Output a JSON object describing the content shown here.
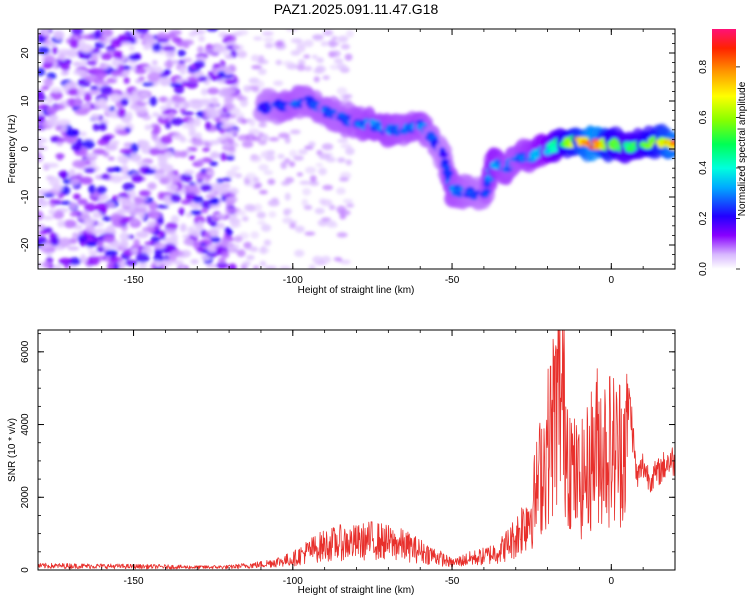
{
  "title": "PAZ1.2025.091.11.47.G18",
  "colors": {
    "snr_line": "#e8302c",
    "axis": "#000000"
  },
  "chart_data": [
    {
      "type": "heatmap",
      "xlabel": "Height of straight line (km)",
      "ylabel": "Frequency (Hz)",
      "xlim": [
        -180,
        20
      ],
      "ylim": [
        -25,
        25
      ],
      "x_ticks": [
        -150,
        -100,
        -50,
        0
      ],
      "y_ticks": [
        -20,
        -10,
        0,
        10,
        20
      ],
      "colorbar": {
        "label": "Normalized spectral amplitude",
        "range": [
          0,
          0.95
        ],
        "ticks": [
          "0.0",
          "0.2",
          "0.4",
          "0.6",
          "0.8"
        ],
        "colormap": "rainbow"
      },
      "ridge": [
        {
          "x": -110,
          "y": 8.5,
          "amp": 0.22
        },
        {
          "x": -105,
          "y": 9.0,
          "amp": 0.25
        },
        {
          "x": -100,
          "y": 9.0,
          "amp": 0.28
        },
        {
          "x": -95,
          "y": 10.0,
          "amp": 0.26
        },
        {
          "x": -90,
          "y": 8.0,
          "amp": 0.27
        },
        {
          "x": -85,
          "y": 6.5,
          "amp": 0.26
        },
        {
          "x": -80,
          "y": 5.5,
          "amp": 0.28
        },
        {
          "x": -75,
          "y": 5.0,
          "amp": 0.3
        },
        {
          "x": -70,
          "y": 4.0,
          "amp": 0.3
        },
        {
          "x": -65,
          "y": 4.0,
          "amp": 0.28
        },
        {
          "x": -60,
          "y": 5.0,
          "amp": 0.3
        },
        {
          "x": -57,
          "y": 3.0,
          "amp": 0.26
        },
        {
          "x": -53,
          "y": -1.0,
          "amp": 0.22
        },
        {
          "x": -50,
          "y": -8.5,
          "amp": 0.3
        },
        {
          "x": -45,
          "y": -9.0,
          "amp": 0.26
        },
        {
          "x": -40,
          "y": -10.0,
          "amp": 0.24
        },
        {
          "x": -37,
          "y": -3.0,
          "amp": 0.35
        },
        {
          "x": -33,
          "y": -4.0,
          "amp": 0.3
        },
        {
          "x": -30,
          "y": -2.0,
          "amp": 0.28
        },
        {
          "x": -25,
          "y": -1.5,
          "amp": 0.32
        },
        {
          "x": -20,
          "y": 0.0,
          "amp": 0.38
        },
        {
          "x": -15,
          "y": 1.5,
          "amp": 0.55
        },
        {
          "x": -10,
          "y": 1.5,
          "amp": 0.7
        },
        {
          "x": -5,
          "y": 1.0,
          "amp": 0.9
        },
        {
          "x": 0,
          "y": 1.0,
          "amp": 0.6
        },
        {
          "x": 5,
          "y": 0.5,
          "amp": 0.5
        },
        {
          "x": 10,
          "y": 1.0,
          "amp": 0.55
        },
        {
          "x": 15,
          "y": 1.5,
          "amp": 0.65
        },
        {
          "x": 20,
          "y": 1.0,
          "amp": 0.85
        }
      ]
    },
    {
      "type": "line",
      "xlabel": "Height of straight line (km)",
      "ylabel": "SNR (10 * v/v)",
      "xlim": [
        -180,
        20
      ],
      "ylim": [
        0,
        6600
      ],
      "x_ticks": [
        -150,
        -100,
        -50,
        0
      ],
      "y_ticks": [
        0,
        2000,
        4000,
        6000
      ],
      "series": [
        {
          "x": [
            -180,
            -170,
            -160,
            -150,
            -140,
            -130,
            -120,
            -110,
            -105,
            -100,
            -95,
            -90,
            -85,
            -80,
            -75,
            -70,
            -65,
            -60,
            -55,
            -50,
            -45,
            -40,
            -35,
            -30,
            -25,
            -22,
            -20,
            -18,
            -16,
            -14,
            -12,
            -10,
            -8,
            -6,
            -4,
            -2,
            0,
            2,
            4,
            6,
            8,
            10,
            12,
            15,
            18,
            20
          ],
          "y": [
            150,
            150,
            140,
            130,
            120,
            100,
            110,
            200,
            300,
            400,
            700,
            900,
            1000,
            1000,
            1100,
            1000,
            900,
            700,
            500,
            250,
            400,
            500,
            700,
            1200,
            2200,
            3600,
            4500,
            5600,
            6600,
            5000,
            3500,
            3200,
            3500,
            4200,
            4700,
            4500,
            4500,
            4300,
            4800,
            4500,
            2500,
            2900,
            2500,
            2700,
            3000,
            3000
          ]
        }
      ]
    }
  ]
}
